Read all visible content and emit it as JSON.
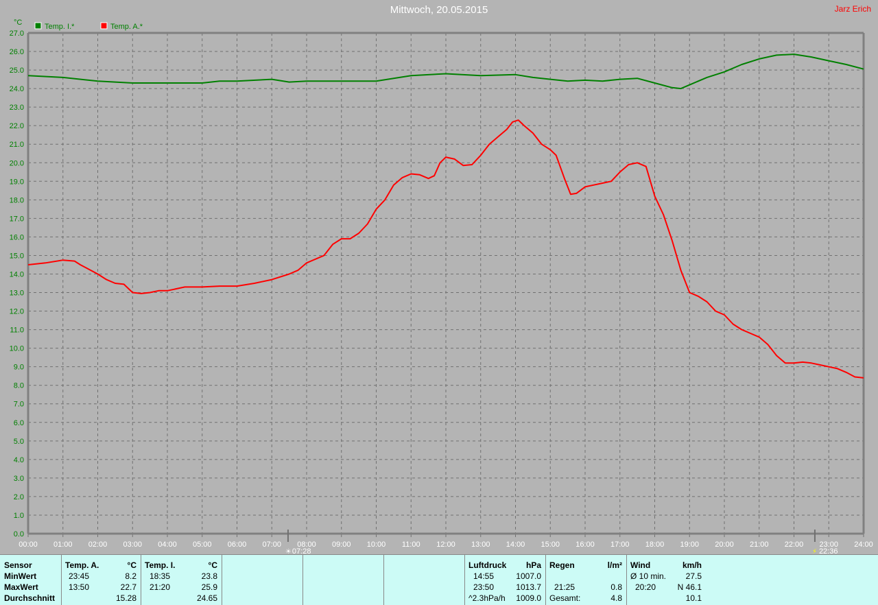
{
  "header": {
    "title": "Mittwoch, 20.05.2015",
    "author": "Jarz Erich"
  },
  "chart_data": {
    "type": "line",
    "yunit": "°C",
    "ylim": [
      0,
      27
    ],
    "yticks": [
      "0.0",
      "1.0",
      "2.0",
      "3.0",
      "4.0",
      "5.0",
      "6.0",
      "7.0",
      "8.0",
      "9.0",
      "10.0",
      "11.0",
      "12.0",
      "13.0",
      "14.0",
      "15.0",
      "16.0",
      "17.0",
      "18.0",
      "19.0",
      "20.0",
      "21.0",
      "22.0",
      "23.0",
      "24.0",
      "25.0",
      "26.0",
      "27.0"
    ],
    "xticks": [
      "00:00",
      "01:00",
      "02:00",
      "03:00",
      "04:00",
      "05:00",
      "06:00",
      "07:00",
      "08:00",
      "09:00",
      "10:00",
      "11:00",
      "12:00",
      "13:00",
      "14:00",
      "15:00",
      "16:00",
      "17:00",
      "18:00",
      "19:00",
      "20:00",
      "21:00",
      "22:00",
      "23:00",
      "24:00"
    ],
    "grid": true,
    "legend": "top-left",
    "markers": [
      {
        "time": "07:28",
        "label": "07:28",
        "icon": "sunrise-icon"
      },
      {
        "time": "22:36",
        "label": "22:36",
        "icon": "sunset-icon"
      }
    ],
    "series": [
      {
        "name": "Temp. I.*",
        "color": "#008000",
        "x": [
          "00:00",
          "01:00",
          "02:00",
          "03:00",
          "04:00",
          "05:00",
          "05:30",
          "06:00",
          "07:00",
          "07:30",
          "08:00",
          "09:00",
          "10:00",
          "11:00",
          "12:00",
          "13:00",
          "14:00",
          "14:30",
          "15:00",
          "15:30",
          "16:00",
          "16:30",
          "17:00",
          "17:30",
          "18:00",
          "18:30",
          "18:45",
          "19:00",
          "19:30",
          "20:00",
          "20:30",
          "21:00",
          "21:30",
          "22:00",
          "22:30",
          "23:00",
          "23:30",
          "24:00"
        ],
        "values": [
          24.7,
          24.6,
          24.4,
          24.3,
          24.3,
          24.3,
          24.4,
          24.4,
          24.5,
          24.35,
          24.4,
          24.4,
          24.4,
          24.7,
          24.8,
          24.7,
          24.75,
          24.6,
          24.5,
          24.4,
          24.45,
          24.4,
          24.5,
          24.55,
          24.3,
          24.05,
          24.0,
          24.2,
          24.6,
          24.9,
          25.3,
          25.6,
          25.8,
          25.85,
          25.7,
          25.5,
          25.3,
          25.05
        ]
      },
      {
        "name": "Temp. A.*",
        "color": "#ff0000",
        "x": [
          "00:00",
          "00:30",
          "01:00",
          "01:20",
          "01:30",
          "02:00",
          "02:15",
          "02:30",
          "02:45",
          "03:00",
          "03:15",
          "03:30",
          "03:45",
          "04:00",
          "04:30",
          "05:00",
          "05:30",
          "06:00",
          "06:30",
          "07:00",
          "07:30",
          "07:45",
          "08:00",
          "08:30",
          "08:45",
          "09:00",
          "09:15",
          "09:30",
          "09:45",
          "10:00",
          "10:15",
          "10:30",
          "10:45",
          "11:00",
          "11:15",
          "11:30",
          "11:40",
          "11:50",
          "12:00",
          "12:15",
          "12:30",
          "12:45",
          "13:00",
          "13:15",
          "13:30",
          "13:45",
          "13:55",
          "14:05",
          "14:15",
          "14:30",
          "14:45",
          "15:00",
          "15:10",
          "15:25",
          "15:35",
          "15:45",
          "16:00",
          "16:15",
          "16:30",
          "16:45",
          "17:00",
          "17:15",
          "17:30",
          "17:45",
          "18:00",
          "18:15",
          "18:30",
          "18:45",
          "19:00",
          "19:15",
          "19:30",
          "19:45",
          "20:00",
          "20:15",
          "20:30",
          "20:45",
          "21:00",
          "21:15",
          "21:30",
          "21:45",
          "22:00",
          "22:15",
          "22:30",
          "22:45",
          "23:00",
          "23:15",
          "23:30",
          "23:45",
          "24:00"
        ],
        "values": [
          14.5,
          14.6,
          14.75,
          14.7,
          14.5,
          14.0,
          13.7,
          13.5,
          13.45,
          13.0,
          12.95,
          13.0,
          13.1,
          13.1,
          13.3,
          13.3,
          13.35,
          13.35,
          13.5,
          13.7,
          14.0,
          14.2,
          14.6,
          15.0,
          15.6,
          15.9,
          15.9,
          16.2,
          16.7,
          17.5,
          18.0,
          18.8,
          19.2,
          19.4,
          19.35,
          19.15,
          19.3,
          20.0,
          20.3,
          20.2,
          19.85,
          19.9,
          20.4,
          21.0,
          21.4,
          21.8,
          22.2,
          22.3,
          22.0,
          21.6,
          21.0,
          20.7,
          20.4,
          19.1,
          18.3,
          18.35,
          18.7,
          18.8,
          18.9,
          19.0,
          19.5,
          19.9,
          20.0,
          19.8,
          18.2,
          17.2,
          15.8,
          14.2,
          13.0,
          12.8,
          12.5,
          12.0,
          11.8,
          11.3,
          11.0,
          10.8,
          10.6,
          10.2,
          9.6,
          9.2,
          9.2,
          9.25,
          9.2,
          9.1,
          9.0,
          8.9,
          8.7,
          8.45,
          8.4
        ]
      }
    ]
  },
  "table": {
    "labels": [
      "Sensor",
      "MinWert",
      "MaxWert",
      "Durchschnitt"
    ],
    "tempA": {
      "head": "Temp. A.",
      "unit": "°C",
      "min_time": "23:45",
      "min": "8.2",
      "max_time": "13:50",
      "max": "22.7",
      "avg": "15.28"
    },
    "tempI": {
      "head": "Temp. I.",
      "unit": "°C",
      "min_time": "18:35",
      "min": "23.8",
      "max_time": "21:20",
      "max": "25.9",
      "avg": "24.65"
    },
    "luftdruck": {
      "head": "Luftdruck",
      "unit": "hPa",
      "t1": "14:55",
      "v1": "1007.0",
      "t2": "23:50",
      "v2": "1013.7",
      "t3": "^2.3hPa/h",
      "v3": "1009.0"
    },
    "regen": {
      "head": "Regen",
      "unit": "l/m²",
      "t2": "21:25",
      "v2": "0.8",
      "t3": "Gesamt:",
      "v3": "4.8"
    },
    "wind": {
      "head": "Wind",
      "unit": "km/h",
      "t1": "Ø 10 min.",
      "v1": "27.5",
      "t2": "20:20",
      "v2": "N 46.1",
      "v3": "10.1"
    }
  }
}
